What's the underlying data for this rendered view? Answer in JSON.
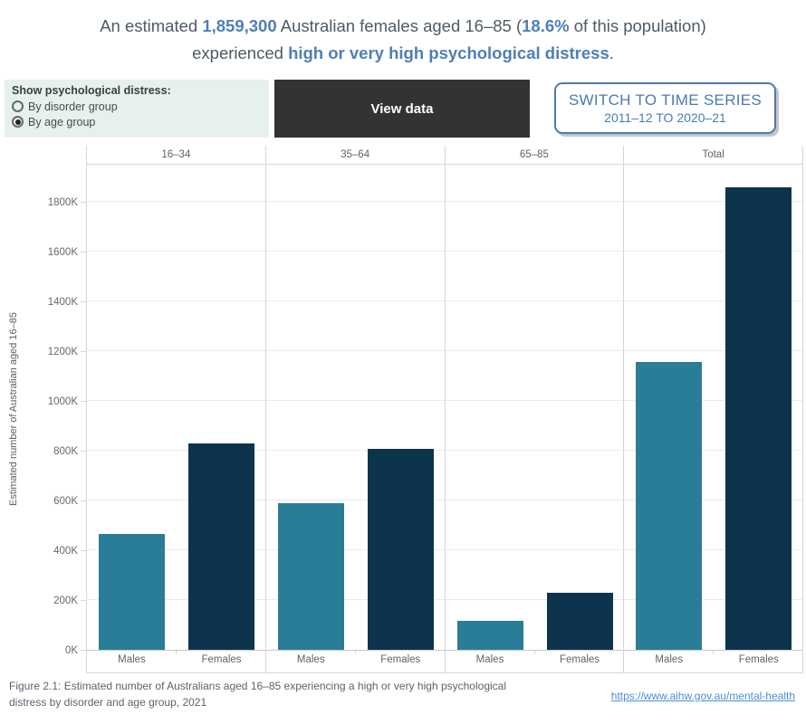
{
  "title": {
    "line1_pre": "An estimated ",
    "line1_value": "1,859,300",
    "line1_mid": " Australian females aged 16–85 (",
    "line1_pct": "18.6%",
    "line1_post": " of this population)",
    "line2_pre": "experienced ",
    "line2_accent": "high or very high psychological distress",
    "line2_post": "."
  },
  "controls": {
    "filter": {
      "label": "Show psychological distress:",
      "options": [
        {
          "label": "By disorder group",
          "selected": false
        },
        {
          "label": "By age group",
          "selected": true
        }
      ]
    },
    "view_data_label": "View data",
    "switch_button": {
      "line1": "SWITCH TO TIME SERIES",
      "line2": "2011–12 TO 2020–21"
    }
  },
  "chart_data": {
    "type": "bar",
    "panels": [
      "16–34",
      "35–64",
      "65–85",
      "Total"
    ],
    "x_labels": [
      "Males",
      "Females"
    ],
    "series": [
      {
        "name": "Males",
        "color": "#2a7d96",
        "values_K": [
          464,
          588,
          118,
          1157
        ]
      },
      {
        "name": "Females",
        "color": "#0c344d",
        "values_K": [
          830,
          806,
          228,
          1859
        ]
      }
    ],
    "ylabel": "Estimated number of Australian aged 16–85",
    "ylim_K": [
      0,
      1800
    ],
    "ytick_step_K": 200,
    "ytick_labels": [
      "0K",
      "200K",
      "400K",
      "600K",
      "800K",
      "1000K",
      "1200K",
      "1400K",
      "1600K",
      "1800K"
    ],
    "grid": true,
    "legend": "none",
    "unit": "thousands of persons"
  },
  "footer": {
    "caption_lines": [
      "Figure 2.1: Estimated number of Australians aged 16–85 experiencing a high or very high psychological",
      "distress by disorder and age group, 2021"
    ],
    "link": "https://www.aihw.gov.au/mental-health"
  },
  "colors": {
    "accent_blue": "#4e7fb5",
    "males_bar": "#2a7d96",
    "females_bar": "#0c344d",
    "filter_panel_bg": "#e6f1ee",
    "view_data_bg": "#333333",
    "switch_blue": "#4a7cb0"
  }
}
